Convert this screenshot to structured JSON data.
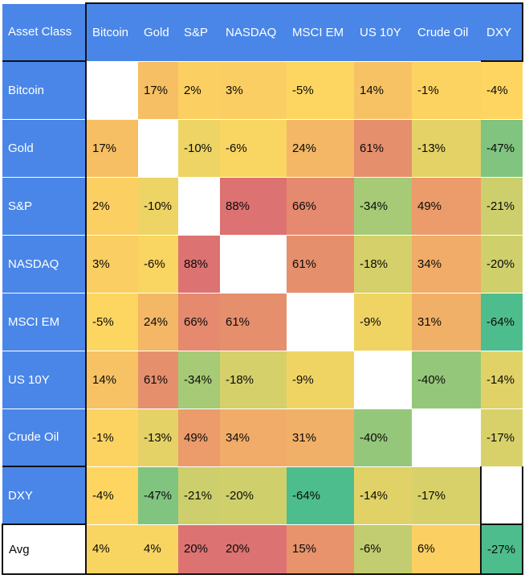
{
  "colors": {
    "header_bg": "#4a86e8",
    "header_text": "#ffffff",
    "cell_text": "#0a0a0a",
    "border_black": "#111111",
    "gridline_white": "#ffffff",
    "heat_max_red": "#dd7272",
    "heat_mid_yellow": "#fdd660",
    "heat_min_green": "#4ebd8d",
    "blank_cell": "#ffffff"
  },
  "table": {
    "corner_label": "Asset Class",
    "columns": [
      "Bitcoin",
      "Gold",
      "S&P",
      "NASDAQ",
      "MSCI EM",
      "US 10Y",
      "Crude Oil",
      "DXY"
    ],
    "rows": [
      {
        "label": "Bitcoin",
        "cells": [
          {
            "v": "",
            "bg": "#ffffff"
          },
          {
            "v": "17%",
            "bg": "#f6bf64"
          },
          {
            "v": "2%",
            "bg": "#fbcf61"
          },
          {
            "v": "3%",
            "bg": "#face62"
          },
          {
            "v": "-5%",
            "bg": "#fcd660"
          },
          {
            "v": "14%",
            "bg": "#f7c264"
          },
          {
            "v": "-1%",
            "bg": "#fcd261"
          },
          {
            "v": "-4%",
            "bg": "#fdd560"
          }
        ]
      },
      {
        "label": "Gold",
        "cells": [
          {
            "v": "17%",
            "bg": "#f6bf64"
          },
          {
            "v": "",
            "bg": "#ffffff"
          },
          {
            "v": "-10%",
            "bg": "#edd464"
          },
          {
            "v": "-6%",
            "bg": "#f9d561"
          },
          {
            "v": "24%",
            "bg": "#f3b766"
          },
          {
            "v": "61%",
            "bg": "#e68f6d"
          },
          {
            "v": "-13%",
            "bg": "#e4d266"
          },
          {
            "v": "-47%",
            "bg": "#80c480"
          }
        ]
      },
      {
        "label": "S&P",
        "cells": [
          {
            "v": "2%",
            "bg": "#fbcf61"
          },
          {
            "v": "-10%",
            "bg": "#edd464"
          },
          {
            "v": "",
            "bg": "#ffffff"
          },
          {
            "v": "88%",
            "bg": "#dd7272"
          },
          {
            "v": "66%",
            "bg": "#e58a6e"
          },
          {
            "v": "-34%",
            "bg": "#a6ca76"
          },
          {
            "v": "49%",
            "bg": "#eb9c6a"
          },
          {
            "v": "-21%",
            "bg": "#cccf6c"
          }
        ]
      },
      {
        "label": "NASDAQ",
        "cells": [
          {
            "v": "3%",
            "bg": "#face62"
          },
          {
            "v": "-6%",
            "bg": "#f9d561"
          },
          {
            "v": "88%",
            "bg": "#dd7272"
          },
          {
            "v": "",
            "bg": "#ffffff"
          },
          {
            "v": "61%",
            "bg": "#e68f6d"
          },
          {
            "v": "-18%",
            "bg": "#d5d06a"
          },
          {
            "v": "34%",
            "bg": "#f0ac68"
          },
          {
            "v": "-20%",
            "bg": "#cfd06c"
          }
        ]
      },
      {
        "label": "MSCI EM",
        "cells": [
          {
            "v": "-5%",
            "bg": "#fcd660"
          },
          {
            "v": "24%",
            "bg": "#f3b766"
          },
          {
            "v": "66%",
            "bg": "#e58a6e"
          },
          {
            "v": "61%",
            "bg": "#e68f6d"
          },
          {
            "v": "",
            "bg": "#ffffff"
          },
          {
            "v": "-9%",
            "bg": "#f0d463"
          },
          {
            "v": "31%",
            "bg": "#f1b067"
          },
          {
            "v": "-64%",
            "bg": "#4ebd8d"
          }
        ]
      },
      {
        "label": "US 10Y",
        "cells": [
          {
            "v": "14%",
            "bg": "#f7c264"
          },
          {
            "v": "61%",
            "bg": "#e68f6d"
          },
          {
            "v": "-34%",
            "bg": "#a6ca76"
          },
          {
            "v": "-18%",
            "bg": "#d5d06a"
          },
          {
            "v": "-9%",
            "bg": "#f0d463"
          },
          {
            "v": "",
            "bg": "#ffffff"
          },
          {
            "v": "-40%",
            "bg": "#95c77b"
          },
          {
            "v": "-14%",
            "bg": "#e1d267"
          }
        ]
      },
      {
        "label": "Crude Oil",
        "cells": [
          {
            "v": "-1%",
            "bg": "#fcd261"
          },
          {
            "v": "-13%",
            "bg": "#e4d266"
          },
          {
            "v": "49%",
            "bg": "#eb9c6a"
          },
          {
            "v": "34%",
            "bg": "#f0ac68"
          },
          {
            "v": "31%",
            "bg": "#f1b067"
          },
          {
            "v": "-40%",
            "bg": "#95c77b"
          },
          {
            "v": "",
            "bg": "#ffffff"
          },
          {
            "v": "-17%",
            "bg": "#d8d169"
          }
        ]
      },
      {
        "label": "DXY",
        "cells": [
          {
            "v": "-4%",
            "bg": "#fdd560"
          },
          {
            "v": "-47%",
            "bg": "#80c480"
          },
          {
            "v": "-21%",
            "bg": "#cccf6c"
          },
          {
            "v": "-20%",
            "bg": "#cfd06c"
          },
          {
            "v": "-64%",
            "bg": "#4ebd8d"
          },
          {
            "v": "-14%",
            "bg": "#e1d267"
          },
          {
            "v": "-17%",
            "bg": "#d8d169"
          },
          {
            "v": "",
            "bg": "#ffffff"
          }
        ]
      }
    ],
    "avg_row": {
      "label": "Avg",
      "cells": [
        {
          "v": "4%",
          "bg": "#f8d561"
        },
        {
          "v": "4%",
          "bg": "#f8d561"
        },
        {
          "v": "20%",
          "bg": "#dd7272"
        },
        {
          "v": "20%",
          "bg": "#dd7272"
        },
        {
          "v": "15%",
          "bg": "#e8936c"
        },
        {
          "v": "-6%",
          "bg": "#c1cd70"
        },
        {
          "v": "6%",
          "bg": "#fbcf61"
        },
        {
          "v": "-27%",
          "bg": "#4ebd8d"
        }
      ]
    }
  },
  "chart_data": {
    "type": "heatmap",
    "title": "",
    "corner_label": "Asset Class",
    "columns": [
      "Bitcoin",
      "Gold",
      "S&P",
      "NASDAQ",
      "MSCI EM",
      "US 10Y",
      "Crude Oil",
      "DXY"
    ],
    "row_labels": [
      "Bitcoin",
      "Gold",
      "S&P",
      "NASDAQ",
      "MSCI EM",
      "US 10Y",
      "Crude Oil",
      "DXY",
      "Avg"
    ],
    "unit": "percent",
    "matrix": [
      [
        null,
        17,
        2,
        3,
        -5,
        14,
        -1,
        -4
      ],
      [
        17,
        null,
        -10,
        -6,
        24,
        61,
        -13,
        -47
      ],
      [
        2,
        -10,
        null,
        88,
        66,
        -34,
        49,
        -21
      ],
      [
        3,
        -6,
        88,
        null,
        61,
        -18,
        34,
        -20
      ],
      [
        -5,
        24,
        66,
        61,
        null,
        -9,
        31,
        -64
      ],
      [
        14,
        61,
        -34,
        -18,
        -9,
        null,
        -40,
        -14
      ],
      [
        -1,
        -13,
        49,
        34,
        31,
        -40,
        null,
        -17
      ],
      [
        -4,
        -47,
        -21,
        -20,
        -64,
        -14,
        -17,
        null
      ],
      [
        4,
        4,
        20,
        20,
        15,
        -6,
        6,
        -27
      ]
    ],
    "color_scale": {
      "min_color": "#4ebd8d",
      "mid_color": "#fdd660",
      "max_color": "#dd7272",
      "min": -64,
      "max": 88
    },
    "legend": "none",
    "grid": "white 1px row separators, black section borders"
  }
}
